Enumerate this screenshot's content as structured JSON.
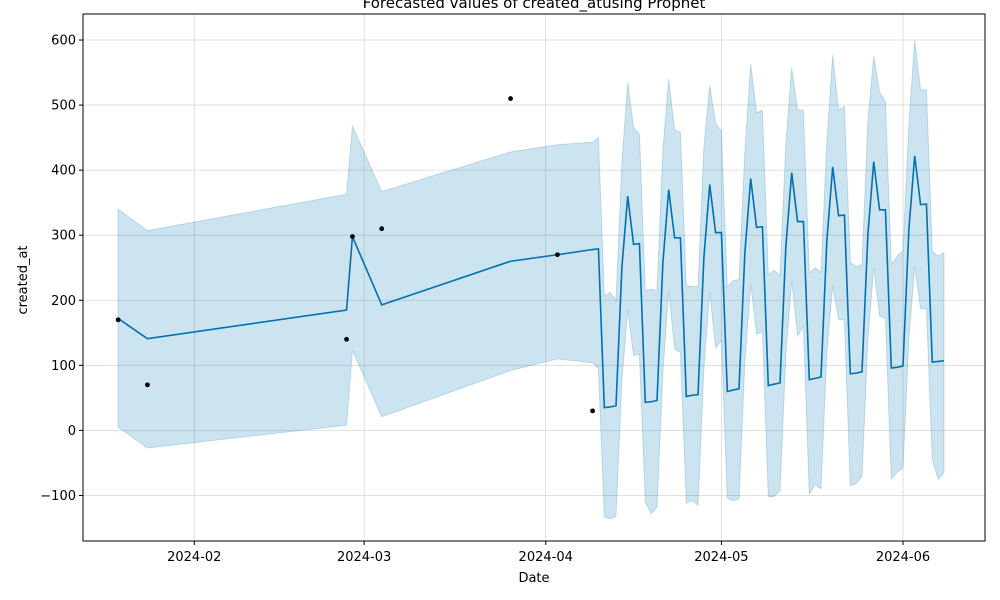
{
  "chart_data": {
    "type": "line",
    "title": "Forecasted values of created_atusing Prophet",
    "xlabel": "Date",
    "ylabel": "created_at",
    "x_axis_type": "date",
    "xlim": [
      "2024-01-13",
      "2024-06-15"
    ],
    "ylim": [
      -170,
      640
    ],
    "grid": true,
    "legend": "none",
    "colors": {
      "forecast_line": "#0072B2",
      "interval_fill": "#0072B2",
      "observed_points": "#000000",
      "grid": "#d9d9d9"
    },
    "x_ticks": [
      {
        "date": "2024-02-01",
        "label": "2024-02"
      },
      {
        "date": "2024-03-01",
        "label": "2024-03"
      },
      {
        "date": "2024-04-01",
        "label": "2024-04"
      },
      {
        "date": "2024-05-01",
        "label": "2024-05"
      },
      {
        "date": "2024-06-01",
        "label": "2024-06"
      }
    ],
    "y_ticks": [
      {
        "value": -100,
        "label": "−100"
      },
      {
        "value": 0,
        "label": "0"
      },
      {
        "value": 100,
        "label": "100"
      },
      {
        "value": 200,
        "label": "200"
      },
      {
        "value": 300,
        "label": "300"
      },
      {
        "value": 400,
        "label": "400"
      },
      {
        "value": 500,
        "label": "500"
      },
      {
        "value": 600,
        "label": "600"
      }
    ],
    "observed": [
      {
        "date": "2024-01-19",
        "y": 170
      },
      {
        "date": "2024-01-24",
        "y": 70
      },
      {
        "date": "2024-02-27",
        "y": 140
      },
      {
        "date": "2024-02-28",
        "y": 298
      },
      {
        "date": "2024-03-04",
        "y": 310
      },
      {
        "date": "2024-03-26",
        "y": 510
      },
      {
        "date": "2024-04-03",
        "y": 270
      },
      {
        "date": "2024-04-09",
        "y": 30
      }
    ],
    "forecast": [
      {
        "date": "2024-01-19",
        "yhat": 172,
        "lower": 5,
        "upper": 340
      },
      {
        "date": "2024-01-24",
        "yhat": 141,
        "lower": -27,
        "upper": 307
      },
      {
        "date": "2024-02-27",
        "yhat": 185,
        "lower": 8,
        "upper": 363
      },
      {
        "date": "2024-02-28",
        "yhat": 298,
        "lower": 123,
        "upper": 468
      },
      {
        "date": "2024-03-04",
        "yhat": 193,
        "lower": 21,
        "upper": 367
      },
      {
        "date": "2024-03-26",
        "yhat": 260,
        "lower": 92,
        "upper": 428
      },
      {
        "date": "2024-04-03",
        "yhat": 270,
        "lower": 110,
        "upper": 439
      },
      {
        "date": "2024-04-09",
        "yhat": 278,
        "lower": 104,
        "upper": 443
      },
      {
        "date": "2024-04-10",
        "yhat": 279,
        "lower": 95,
        "upper": 450
      },
      {
        "date": "2024-04-11",
        "yhat": 35,
        "lower": -133,
        "upper": 207
      },
      {
        "date": "2024-04-12",
        "yhat": 36,
        "lower": -136,
        "upper": 212
      },
      {
        "date": "2024-04-13",
        "yhat": 38,
        "lower": -132,
        "upper": 200
      },
      {
        "date": "2024-04-14",
        "yhat": 250,
        "lower": 76,
        "upper": 410
      },
      {
        "date": "2024-04-15",
        "yhat": 360,
        "lower": 186,
        "upper": 535
      },
      {
        "date": "2024-04-16",
        "yhat": 286,
        "lower": 115,
        "upper": 465
      },
      {
        "date": "2024-04-17",
        "yhat": 287,
        "lower": 117,
        "upper": 455
      },
      {
        "date": "2024-04-18",
        "yhat": 43,
        "lower": -110,
        "upper": 215
      },
      {
        "date": "2024-04-19",
        "yhat": 44,
        "lower": -128,
        "upper": 217
      },
      {
        "date": "2024-04-20",
        "yhat": 46,
        "lower": -118,
        "upper": 215
      },
      {
        "date": "2024-04-21",
        "yhat": 257,
        "lower": 88,
        "upper": 430
      },
      {
        "date": "2024-04-22",
        "yhat": 370,
        "lower": 215,
        "upper": 540
      },
      {
        "date": "2024-04-23",
        "yhat": 296,
        "lower": 125,
        "upper": 462
      },
      {
        "date": "2024-04-24",
        "yhat": 296,
        "lower": 120,
        "upper": 458
      },
      {
        "date": "2024-04-25",
        "yhat": 52,
        "lower": -112,
        "upper": 223
      },
      {
        "date": "2024-04-26",
        "yhat": 54,
        "lower": -108,
        "upper": 221
      },
      {
        "date": "2024-04-27",
        "yhat": 55,
        "lower": -115,
        "upper": 221
      },
      {
        "date": "2024-04-28",
        "yhat": 265,
        "lower": 95,
        "upper": 435
      },
      {
        "date": "2024-04-29",
        "yhat": 378,
        "lower": 213,
        "upper": 530
      },
      {
        "date": "2024-04-30",
        "yhat": 304,
        "lower": 127,
        "upper": 472
      },
      {
        "date": "2024-05-01",
        "yhat": 304,
        "lower": 138,
        "upper": 460
      },
      {
        "date": "2024-05-02",
        "yhat": 60,
        "lower": -104,
        "upper": 220
      },
      {
        "date": "2024-05-03",
        "yhat": 62,
        "lower": -108,
        "upper": 230
      },
      {
        "date": "2024-05-04",
        "yhat": 64,
        "lower": -105,
        "upper": 232
      },
      {
        "date": "2024-05-05",
        "yhat": 273,
        "lower": 104,
        "upper": 428
      },
      {
        "date": "2024-05-06",
        "yhat": 387,
        "lower": 225,
        "upper": 563
      },
      {
        "date": "2024-05-07",
        "yhat": 312,
        "lower": 148,
        "upper": 488
      },
      {
        "date": "2024-05-08",
        "yhat": 313,
        "lower": 152,
        "upper": 492
      },
      {
        "date": "2024-05-09",
        "yhat": 69,
        "lower": -102,
        "upper": 240
      },
      {
        "date": "2024-05-10",
        "yhat": 71,
        "lower": -102,
        "upper": 246
      },
      {
        "date": "2024-05-11",
        "yhat": 73,
        "lower": -92,
        "upper": 238
      },
      {
        "date": "2024-05-12",
        "yhat": 283,
        "lower": 116,
        "upper": 440
      },
      {
        "date": "2024-05-13",
        "yhat": 396,
        "lower": 230,
        "upper": 557
      },
      {
        "date": "2024-05-14",
        "yhat": 321,
        "lower": 145,
        "upper": 493
      },
      {
        "date": "2024-05-15",
        "yhat": 321,
        "lower": 160,
        "upper": 492
      },
      {
        "date": "2024-05-16",
        "yhat": 78,
        "lower": -98,
        "upper": 242
      },
      {
        "date": "2024-05-17",
        "yhat": 80,
        "lower": -83,
        "upper": 250
      },
      {
        "date": "2024-05-18",
        "yhat": 82,
        "lower": -90,
        "upper": 243
      },
      {
        "date": "2024-05-19",
        "yhat": 292,
        "lower": 120,
        "upper": 445
      },
      {
        "date": "2024-05-20",
        "yhat": 405,
        "lower": 222,
        "upper": 577
      },
      {
        "date": "2024-05-21",
        "yhat": 330,
        "lower": 170,
        "upper": 492
      },
      {
        "date": "2024-05-22",
        "yhat": 331,
        "lower": 170,
        "upper": 498
      },
      {
        "date": "2024-05-23",
        "yhat": 87,
        "lower": -85,
        "upper": 258
      },
      {
        "date": "2024-05-24",
        "yhat": 88,
        "lower": -82,
        "upper": 252
      },
      {
        "date": "2024-05-25",
        "yhat": 90,
        "lower": -70,
        "upper": 255
      },
      {
        "date": "2024-05-26",
        "yhat": 300,
        "lower": 140,
        "upper": 475
      },
      {
        "date": "2024-05-27",
        "yhat": 413,
        "lower": 250,
        "upper": 575
      },
      {
        "date": "2024-05-28",
        "yhat": 339,
        "lower": 176,
        "upper": 520
      },
      {
        "date": "2024-05-29",
        "yhat": 339,
        "lower": 172,
        "upper": 505
      },
      {
        "date": "2024-05-30",
        "yhat": 96,
        "lower": -75,
        "upper": 255
      },
      {
        "date": "2024-05-31",
        "yhat": 97,
        "lower": -64,
        "upper": 268
      },
      {
        "date": "2024-06-01",
        "yhat": 99,
        "lower": -58,
        "upper": 276
      },
      {
        "date": "2024-06-02",
        "yhat": 309,
        "lower": 140,
        "upper": 470
      },
      {
        "date": "2024-06-03",
        "yhat": 422,
        "lower": 252,
        "upper": 600
      },
      {
        "date": "2024-06-04",
        "yhat": 347,
        "lower": 187,
        "upper": 523
      },
      {
        "date": "2024-06-05",
        "yhat": 348,
        "lower": 187,
        "upper": 524
      },
      {
        "date": "2024-06-06",
        "yhat": 105,
        "lower": -45,
        "upper": 275
      },
      {
        "date": "2024-06-07",
        "yhat": 106,
        "lower": -75,
        "upper": 268
      },
      {
        "date": "2024-06-08",
        "yhat": 107,
        "lower": -65,
        "upper": 273
      }
    ]
  }
}
